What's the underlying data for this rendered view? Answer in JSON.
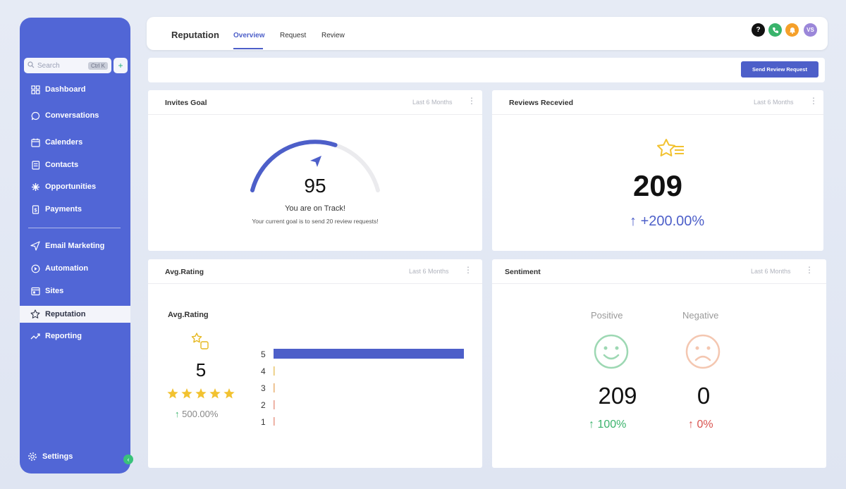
{
  "sidebar": {
    "search_placeholder": "Search",
    "search_shortcut": "Ctrl K",
    "quick_action_icon": "+",
    "items": [
      {
        "label": "Dashboard",
        "icon": "grid-icon"
      },
      {
        "label": "Conversations",
        "icon": "chat-icon"
      },
      {
        "label": "Calenders",
        "icon": "calendar-icon"
      },
      {
        "label": "Contacts",
        "icon": "contacts-icon"
      },
      {
        "label": "Opportunities",
        "icon": "opportunities-icon"
      },
      {
        "label": "Payments",
        "icon": "payments-icon"
      },
      {
        "label": "Email Marketing",
        "icon": "send-icon"
      },
      {
        "label": "Automation",
        "icon": "automation-icon"
      },
      {
        "label": "Sites",
        "icon": "sites-icon"
      },
      {
        "label": "Reputation",
        "icon": "star-icon",
        "active": true
      },
      {
        "label": "Reporting",
        "icon": "trend-icon"
      }
    ],
    "settings_label": "Settings"
  },
  "header": {
    "title": "Reputation",
    "tabs": [
      {
        "label": "Overview",
        "active": true
      },
      {
        "label": "Request"
      },
      {
        "label": "Review"
      }
    ],
    "icons": [
      {
        "name": "help-icon",
        "glyph": "?",
        "color": "#111111"
      },
      {
        "name": "phone-icon",
        "glyph": "✆",
        "color": "#39b36b"
      },
      {
        "name": "notification-icon",
        "glyph": "🔔",
        "color": "#f5a02a"
      },
      {
        "name": "avatar",
        "glyph": "VS",
        "color": "#9b87d9"
      }
    ]
  },
  "actions": {
    "send_review_request": "Send Review Request"
  },
  "invites_goal": {
    "title": "Invites Goal",
    "range": "Last 6 Months",
    "value": "95",
    "progress": 0.62,
    "status": "You are on Track!",
    "subtitle": "Your current goal is to send 20 review requests!"
  },
  "reviews_received": {
    "title": "Reviews Recevied",
    "range": "Last 6 Months",
    "value": "209",
    "change": "+200.00%"
  },
  "avg_rating": {
    "title": "Avg.Rating",
    "range": "Last 6 Months",
    "inner_title": "Avg.Rating",
    "value": "5",
    "stars": 5,
    "change": "500.00%",
    "bars": [
      {
        "label": "5",
        "fraction": 1.0
      },
      {
        "label": "4",
        "fraction": 0
      },
      {
        "label": "3",
        "fraction": 0
      },
      {
        "label": "2",
        "fraction": 0
      },
      {
        "label": "1",
        "fraction": 0
      }
    ]
  },
  "sentiment": {
    "title": "Sentiment",
    "range": "Last 6 Months",
    "positive_label": "Positive",
    "negative_label": "Negative",
    "positive_value": "209",
    "negative_value": "0",
    "positive_change": "100%",
    "negative_change": "0%"
  },
  "colors": {
    "sidebar": "#5166d6",
    "accent": "#4d5fc9",
    "positive": "#3bb36c",
    "negative": "#d9534f",
    "star": "#f2c230"
  }
}
